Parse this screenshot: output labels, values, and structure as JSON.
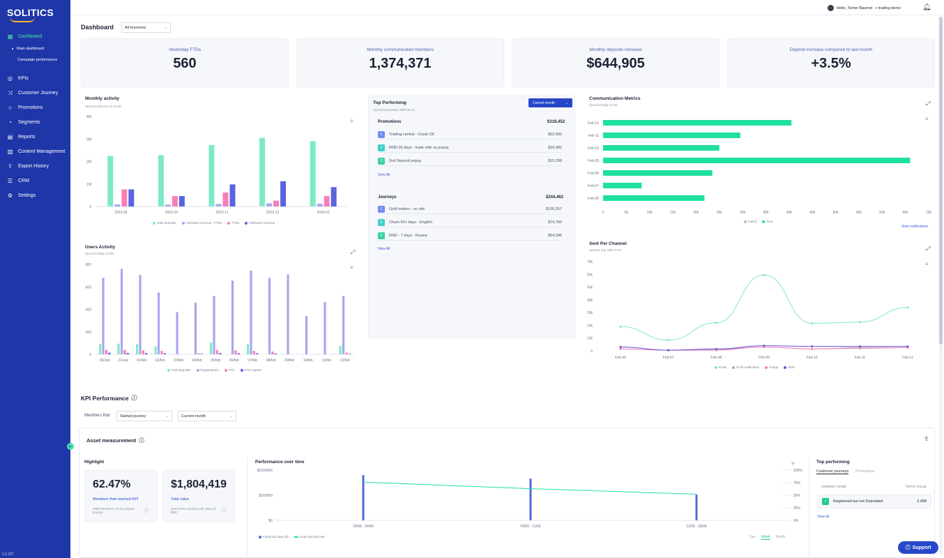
{
  "sidebar": {
    "logo": "SOLITICS",
    "items": [
      {
        "label": "Dashboard",
        "icon": "grid-icon"
      },
      {
        "label": "KPIs",
        "icon": "target-icon"
      },
      {
        "label": "Customer Journey",
        "icon": "shuffle-icon"
      },
      {
        "label": "Promotions",
        "icon": "star-icon"
      },
      {
        "label": "Segments",
        "icon": "pie-icon"
      },
      {
        "label": "Reports",
        "icon": "document-icon"
      },
      {
        "label": "Content Management",
        "icon": "content-icon"
      },
      {
        "label": "Export History",
        "icon": "export-icon"
      },
      {
        "label": "CRM",
        "icon": "list-icon"
      },
      {
        "label": "Settings",
        "icon": "settings-icon"
      }
    ],
    "subitems": [
      "Main dashboard",
      "Campaign performance"
    ],
    "version": "3.1.227"
  },
  "topbar": {
    "greeting": "Hello, Tomer Baumel",
    "account": "» trading-demo"
  },
  "dashboard": {
    "title": "Dashboard",
    "branch_select": "All branches"
  },
  "kpis": [
    {
      "label": "Yesterday FTDs",
      "value": "560"
    },
    {
      "label": "Monthly communicated members",
      "value": "1,374,371"
    },
    {
      "label": "Monthly deposits increase",
      "value": "$644,905"
    },
    {
      "label": "Deposit increase compared to last month",
      "value": "+3.5%"
    }
  ],
  "monthly_activity": {
    "title": "Monthly activity",
    "synced": "Synced 2024-02-13 13:49",
    "legend": [
      "Total deposits",
      "Attributed revenue - FTDs",
      "FTDs",
      "Attributed revenue"
    ],
    "colors": [
      "#7ee9c8",
      "#a8a7ee",
      "#f77fb9",
      "#5b63e0"
    ]
  },
  "users_activity": {
    "title": "Users Activity",
    "synced": "Synced Today 13:36",
    "legend": [
      "Total deposits",
      "Registrations",
      "FTD",
      "FTD-organic"
    ],
    "colors": [
      "#7ee9c8",
      "#a8a7ee",
      "#f77fb9",
      "#5b63e0"
    ]
  },
  "top_performing": {
    "title": "Top Performing",
    "synced": "Synced December 20th 09:43",
    "period_button": "Current month",
    "promotions": {
      "title": "Promotions",
      "total": "$318,452",
      "rows": [
        {
          "rank": "1",
          "name": "Trading central - Crude Oil",
          "value": "$62,993"
        },
        {
          "rank": "2",
          "name": "RND 30 days - trade with us popup",
          "value": "$34,982"
        },
        {
          "rank": "3",
          "name": "2nd Deposit popup",
          "value": "$15,298"
        }
      ],
      "view_all": "View All"
    },
    "journeys": {
      "title": "Journeys",
      "total": "$244,462",
      "rows": [
        {
          "rank": "1",
          "name": "Gold traders - on site",
          "value": "$105,357"
        },
        {
          "rank": "2",
          "name": "Churn 60+ days - English",
          "value": "$74,760"
        },
        {
          "rank": "3",
          "name": "RND - 7 days - Russia",
          "value": "$64,345"
        }
      ],
      "view_all": "View All"
    }
  },
  "comm_metrics": {
    "title": "Communication Metrics",
    "synced": "Synced Today 13:36",
    "legend": [
      "Failed",
      "Sent"
    ],
    "view_link": "View notifications"
  },
  "sent_per_channel": {
    "title": "Sent Per Channel",
    "synced": "Synced July 18th 07:02",
    "legend": [
      "Email",
      "Push notification",
      "Popup",
      "SMS"
    ]
  },
  "kpi_performance": {
    "title": "KPI Performance",
    "members_that": "Members that",
    "select_journey": "Started journey",
    "select_period": "Current month"
  },
  "asset": {
    "title": "Asset measurement",
    "highlight": "Highlight",
    "pct_value": "62.47%",
    "pct_label": "Members that reached KPI",
    "pct_note": "3588 Members / 5744 Started journey",
    "total_value": "$1,804,419",
    "total_label": "Total value",
    "total_note": "3410 KPIs reached with value of $367",
    "perf_title": "Performance over time",
    "perf_legend": [
      "Financial value ($)",
      "Goal reached rate"
    ],
    "granularity": [
      "Day",
      "Week",
      "Month"
    ],
    "top_title": "Top performing",
    "tabs": [
      "Customer journeys",
      "Promotions"
    ],
    "col_name": "JOURNEY NAME",
    "col_value": "TOTAL VALUE",
    "top_row": {
      "rank": "1",
      "name": "Registered but not Deposited",
      "value": "2,498"
    },
    "view_all": "View all"
  },
  "support": "Support",
  "chart_data": [
    {
      "type": "bar",
      "title": "Monthly activity",
      "categories": [
        "2023-09",
        "2023-10",
        "2023-11",
        "2023-12",
        "2024-01"
      ],
      "ylim": [
        0,
        4000000
      ],
      "yticks": [
        "0",
        "1M",
        "2M",
        "3M",
        "4M"
      ],
      "series": [
        {
          "name": "Total deposits",
          "values": [
            2250000,
            2280000,
            2730000,
            3050000,
            2900000
          ]
        },
        {
          "name": "Attributed revenue - FTDs",
          "values": [
            90000,
            80000,
            110000,
            140000,
            120000
          ]
        },
        {
          "name": "FTDs",
          "values": [
            760000,
            460000,
            620000,
            260000,
            460000
          ]
        },
        {
          "name": "Attributed revenue",
          "values": [
            760000,
            460000,
            980000,
            1120000,
            860000
          ]
        }
      ]
    },
    {
      "type": "bar",
      "title": "Users Activity",
      "categories": [
        "30/Jan",
        "31/Jan",
        "01/feb",
        "02/feb",
        "03/feb",
        "04/feb",
        "05/feb",
        "06/feb",
        "07/feb",
        "08/feb",
        "09/feb",
        "10/feb",
        "11/feb",
        "12/feb"
      ],
      "ylim": [
        0,
        800
      ],
      "yticks": [
        "0",
        "200",
        "400",
        "600",
        "800"
      ],
      "series": [
        {
          "name": "Total deposits",
          "values": [
            90,
            95,
            90,
            70,
            0,
            0,
            105,
            0,
            90,
            0,
            0,
            0,
            0,
            75
          ]
        },
        {
          "name": "Registrations",
          "values": [
            680,
            760,
            705,
            550,
            375,
            460,
            520,
            655,
            745,
            680,
            710,
            340,
            465,
            520
          ]
        },
        {
          "name": "FTD",
          "values": [
            40,
            40,
            35,
            30,
            0,
            10,
            40,
            35,
            30,
            25,
            0,
            0,
            0,
            15
          ]
        },
        {
          "name": "FTD-organic",
          "values": [
            15,
            12,
            12,
            10,
            0,
            5,
            12,
            10,
            10,
            8,
            0,
            0,
            0,
            5
          ]
        }
      ]
    },
    {
      "type": "bar",
      "title": "Communication Metrics",
      "orientation": "horizontal",
      "categories": [
        "Feb-12",
        "Feb-11",
        "Feb-10",
        "Feb-09",
        "Feb-08",
        "Feb-07",
        "Feb-06"
      ],
      "xlim": [
        0,
        70000
      ],
      "xticks": [
        "0",
        "5k",
        "10k",
        "15k",
        "20k",
        "25k",
        "30k",
        "35k",
        "40k",
        "45k",
        "50k",
        "55k",
        "60k",
        "65k",
        "70k"
      ],
      "series": [
        {
          "name": "Failed",
          "values": [
            0,
            0,
            0,
            0,
            0,
            0,
            0
          ]
        },
        {
          "name": "Sent",
          "values": [
            40500,
            29500,
            25000,
            66000,
            23500,
            8300,
            21800
          ]
        }
      ]
    },
    {
      "type": "line",
      "title": "Sent Per Channel",
      "x": [
        "Feb-06",
        "Feb-07",
        "Feb-08",
        "Feb-09",
        "Feb-10",
        "Feb-11",
        "Feb-12"
      ],
      "ylim": [
        0,
        70000
      ],
      "yticks": [
        "0",
        "10k",
        "20k",
        "30k",
        "40k",
        "50k",
        "60k",
        "70k"
      ],
      "series": [
        {
          "name": "Email",
          "values": [
            19000,
            8500,
            22000,
            59500,
            21500,
            22500,
            34000
          ]
        },
        {
          "name": "Push notification",
          "values": [
            1500,
            500,
            1200,
            3000,
            1500,
            2500,
            2500
          ]
        },
        {
          "name": "Popup",
          "values": [
            1500,
            500,
            500,
            3000,
            1500,
            2000,
            2500
          ]
        },
        {
          "name": "SMS",
          "values": [
            3000,
            500,
            1500,
            4000,
            3500,
            3500,
            3500
          ]
        }
      ]
    },
    {
      "type": "bar",
      "title": "Performance over time",
      "categories": [
        "28/08 - 04/09",
        "04/09 - 11/09",
        "11/09 - 18/09"
      ],
      "ylim": [
        0,
        1000000
      ],
      "yticks": [
        "$0",
        "$500000",
        "$1000000"
      ],
      "y2ticks": [
        "0%",
        "25%",
        "50%",
        "75%",
        "100%"
      ],
      "series": [
        {
          "name": "Financial value ($)",
          "values": [
            900000,
            830000,
            510000
          ]
        },
        {
          "name": "Goal reached rate",
          "values": [
            76,
            63,
            52
          ]
        }
      ]
    }
  ]
}
